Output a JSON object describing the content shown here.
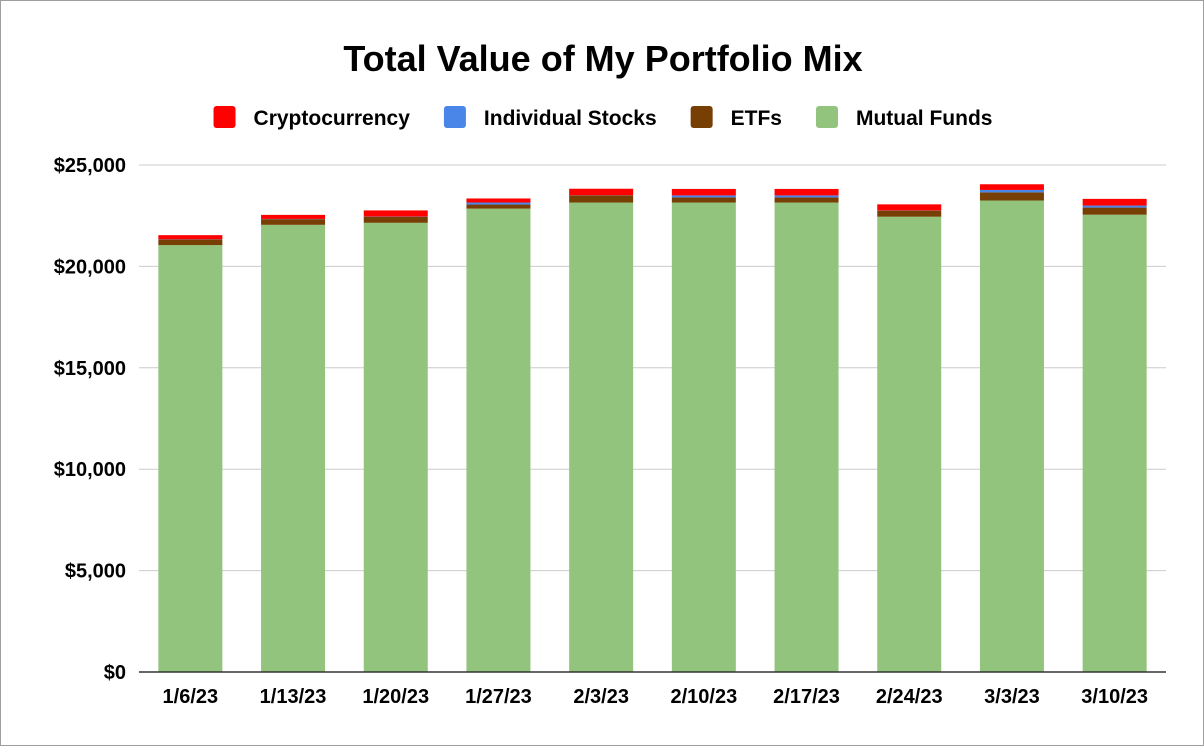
{
  "chart_data": {
    "type": "bar",
    "stacked": true,
    "title": "Total Value of My Portfolio Mix",
    "xlabel": "",
    "ylabel": "",
    "ylim": [
      0,
      25000
    ],
    "y_ticks": [
      {
        "value": 0,
        "label": "$0"
      },
      {
        "value": 5000,
        "label": "$5,000"
      },
      {
        "value": 10000,
        "label": "$10,000"
      },
      {
        "value": 15000,
        "label": "$15,000"
      },
      {
        "value": 20000,
        "label": "$20,000"
      },
      {
        "value": 25000,
        "label": "$25,000"
      }
    ],
    "grid": true,
    "legend_position": "top",
    "categories": [
      "1/6/23",
      "1/13/23",
      "1/20/23",
      "1/27/23",
      "2/3/23",
      "2/10/23",
      "2/17/23",
      "2/24/23",
      "3/3/23",
      "3/10/23"
    ],
    "series": [
      {
        "name": "Mutual Funds",
        "color": "#93c47d",
        "values": [
          21050,
          22050,
          22150,
          22850,
          23150,
          23150,
          23150,
          22450,
          23250,
          22550
        ]
      },
      {
        "name": "ETFs",
        "color": "#783f04",
        "values": [
          280,
          280,
          300,
          200,
          350,
          250,
          250,
          300,
          400,
          350
        ]
      },
      {
        "name": "Individual Stocks",
        "color": "#4a86e8",
        "values": [
          10,
          10,
          10,
          100,
          10,
          100,
          100,
          10,
          120,
          100
        ]
      },
      {
        "name": "Cryptocurrency",
        "color": "#ff0000",
        "values": [
          200,
          200,
          300,
          200,
          320,
          320,
          320,
          300,
          280,
          330
        ]
      }
    ],
    "legend_order": [
      "Cryptocurrency",
      "Individual Stocks",
      "ETFs",
      "Mutual Funds"
    ]
  }
}
